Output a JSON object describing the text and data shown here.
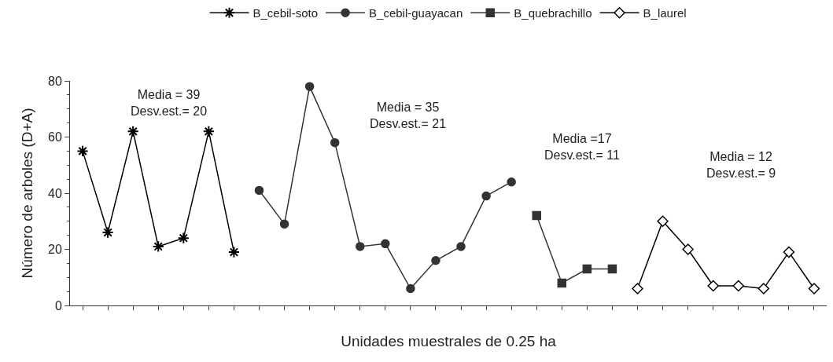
{
  "chart_data": {
    "type": "line",
    "xlabel": "Unidades muestrales de 0.25 ha",
    "ylabel": "Número de arboles (D+A)",
    "categories": [
      null,
      null,
      null,
      null,
      null,
      null,
      null,
      null,
      null,
      null,
      null,
      null,
      null,
      null,
      null,
      null,
      null,
      null,
      null,
      null,
      null,
      null,
      null,
      null,
      null,
      null,
      null,
      null,
      null,
      null
    ],
    "ylim": [
      0,
      80
    ],
    "yticks": [
      0,
      20,
      40,
      60,
      80
    ],
    "grid": false,
    "legend": "top",
    "line_style": "solid",
    "series": [
      {
        "name": "B_cebil-soto",
        "color": "#000000",
        "marker": "cross",
        "values": [
          55,
          26,
          62,
          21,
          24,
          62,
          19,
          null,
          null,
          null,
          null,
          null,
          null,
          null,
          null,
          null,
          null,
          null,
          null,
          null,
          null,
          null,
          null,
          null,
          null,
          null,
          null,
          null,
          null,
          null
        ]
      },
      {
        "name": "B_cebil-guayacan",
        "color": "#333333",
        "marker": "circle",
        "values": [
          null,
          null,
          null,
          null,
          null,
          null,
          null,
          41,
          29,
          78,
          58,
          21,
          22,
          6,
          16,
          21,
          39,
          44,
          null,
          null,
          null,
          null,
          null,
          null,
          null,
          null,
          null,
          null,
          null,
          null
        ]
      },
      {
        "name": "B_quebrachillo",
        "color": "#333333",
        "marker": "square",
        "values": [
          null,
          null,
          null,
          null,
          null,
          null,
          null,
          null,
          null,
          null,
          null,
          null,
          null,
          null,
          null,
          null,
          null,
          null,
          32,
          8,
          13,
          13,
          null,
          null,
          null,
          null,
          null,
          null,
          null,
          null
        ]
      },
      {
        "name": "B_laurel",
        "color": "#000000",
        "marker": "diamond",
        "values": [
          null,
          null,
          null,
          null,
          null,
          null,
          null,
          null,
          null,
          null,
          null,
          null,
          null,
          null,
          null,
          null,
          null,
          null,
          null,
          null,
          null,
          null,
          6,
          30,
          20,
          7,
          7,
          6,
          19,
          6
        ]
      }
    ],
    "annotations": [
      "Media = 39\nDesv.est.= 20",
      "Media = 35\nDesv.est.= 21",
      "Media =17\nDesv.est.= 11",
      "Media = 12\nDesv.est.= 9"
    ]
  }
}
